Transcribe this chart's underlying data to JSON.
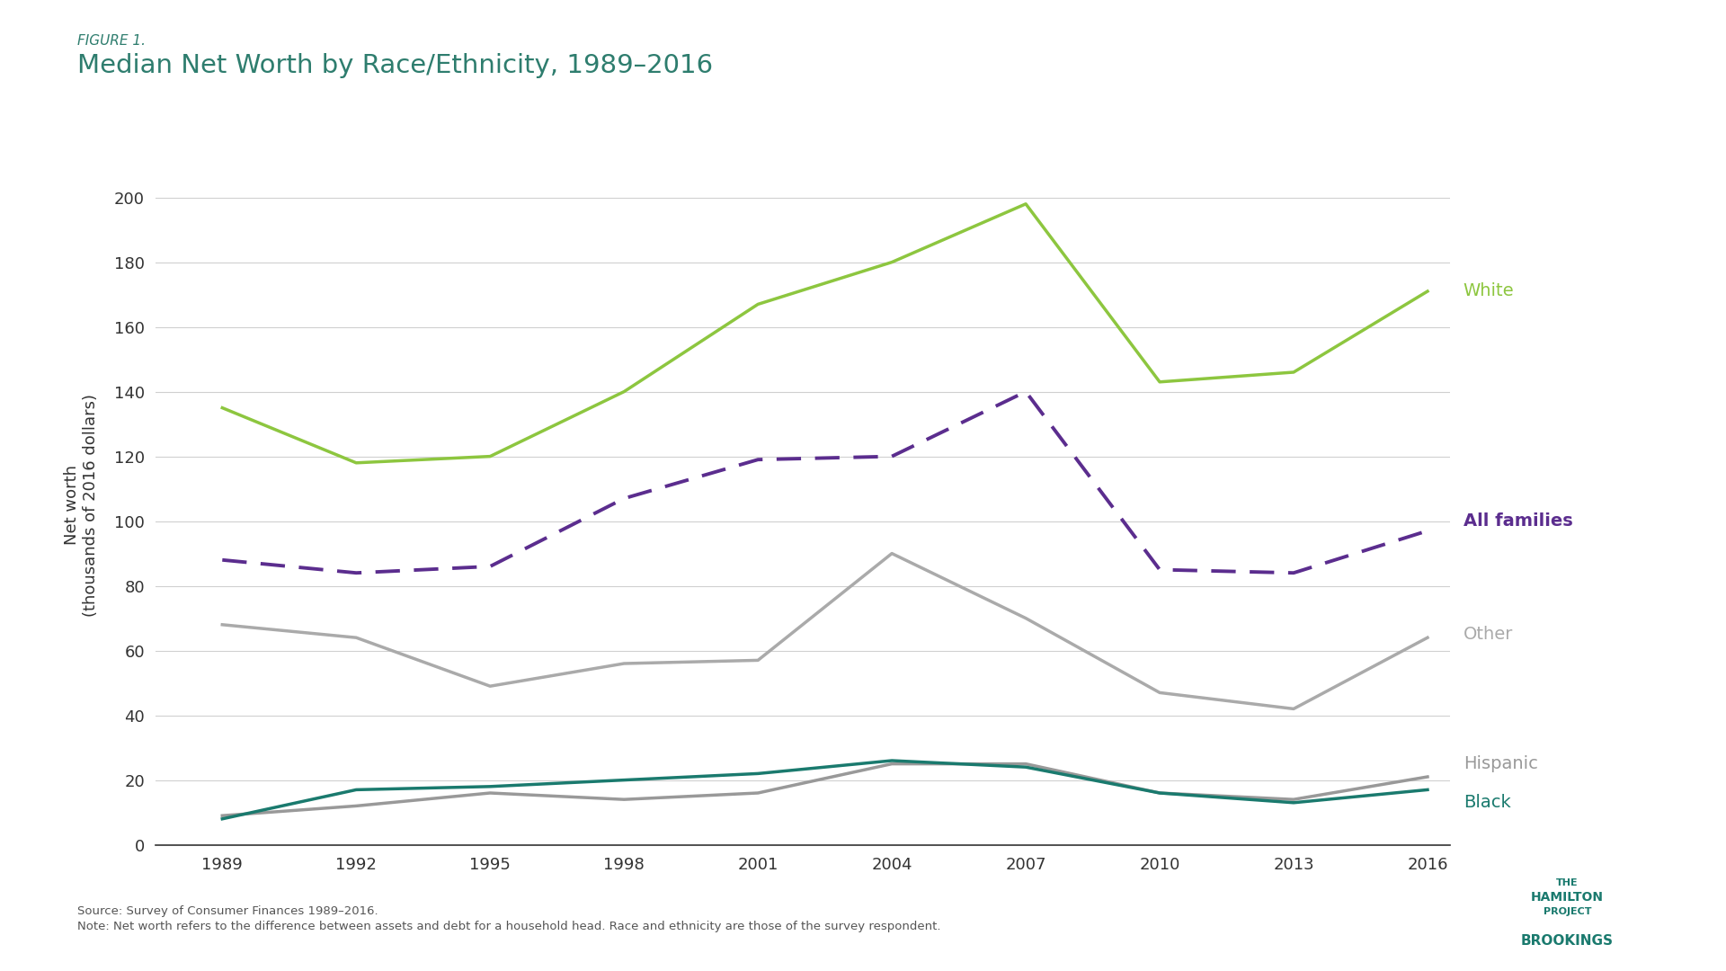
{
  "figure_label": "FIGURE 1.",
  "title": "Median Net Worth by Race/Ethnicity, 1989–2016",
  "ylabel": "Net worth\n(thousands of 2016 dollars)",
  "years": [
    1989,
    1992,
    1995,
    1998,
    2001,
    2004,
    2007,
    2010,
    2013,
    2016
  ],
  "series": {
    "White": {
      "values": [
        135,
        118,
        120,
        140,
        167,
        180,
        198,
        143,
        146,
        171
      ],
      "color": "#8dc63f",
      "linestyle": "solid",
      "linewidth": 2.5
    },
    "All families": {
      "values": [
        88,
        84,
        86,
        107,
        119,
        120,
        140,
        85,
        84,
        97
      ],
      "color": "#5b2d8e",
      "linestyle": "dashed",
      "linewidth": 2.8
    },
    "Other": {
      "values": [
        68,
        64,
        49,
        56,
        57,
        90,
        70,
        47,
        42,
        64
      ],
      "color": "#aaaaaa",
      "linestyle": "solid",
      "linewidth": 2.5
    },
    "Hispanic": {
      "values": [
        9,
        12,
        16,
        14,
        16,
        25,
        25,
        16,
        14,
        21
      ],
      "color": "#999999",
      "linestyle": "solid",
      "linewidth": 2.5
    },
    "Black": {
      "values": [
        8,
        17,
        18,
        20,
        22,
        26,
        24,
        16,
        13,
        17
      ],
      "color": "#1a7a6e",
      "linestyle": "solid",
      "linewidth": 2.5
    }
  },
  "labels": {
    "White": {
      "y": 171,
      "color": "#8dc63f",
      "fontsize": 14,
      "fontweight": "normal",
      "va": "center"
    },
    "All families": {
      "y": 100,
      "color": "#5b2d8e",
      "fontsize": 14,
      "fontweight": "bold",
      "va": "center"
    },
    "Other": {
      "y": 65,
      "color": "#aaaaaa",
      "fontsize": 14,
      "fontweight": "normal",
      "va": "center"
    },
    "Hispanic": {
      "y": 25,
      "color": "#999999",
      "fontsize": 14,
      "fontweight": "normal",
      "va": "center"
    },
    "Black": {
      "y": 13,
      "color": "#1a7a6e",
      "fontsize": 14,
      "fontweight": "normal",
      "va": "center"
    }
  },
  "ylim": [
    0,
    210
  ],
  "yticks": [
    0,
    20,
    40,
    60,
    80,
    100,
    120,
    140,
    160,
    180,
    200
  ],
  "background_color": "#ffffff",
  "grid_color": "#d0d0d0",
  "source_text": "Source: Survey of Consumer Finances 1989–2016.",
  "note_text": "Note: Net worth refers to the difference between assets and debt for a household head. Race and ethnicity are those of the survey respondent.",
  "title_color": "#2e7d6e",
  "figure_label_color": "#2e7d6e"
}
